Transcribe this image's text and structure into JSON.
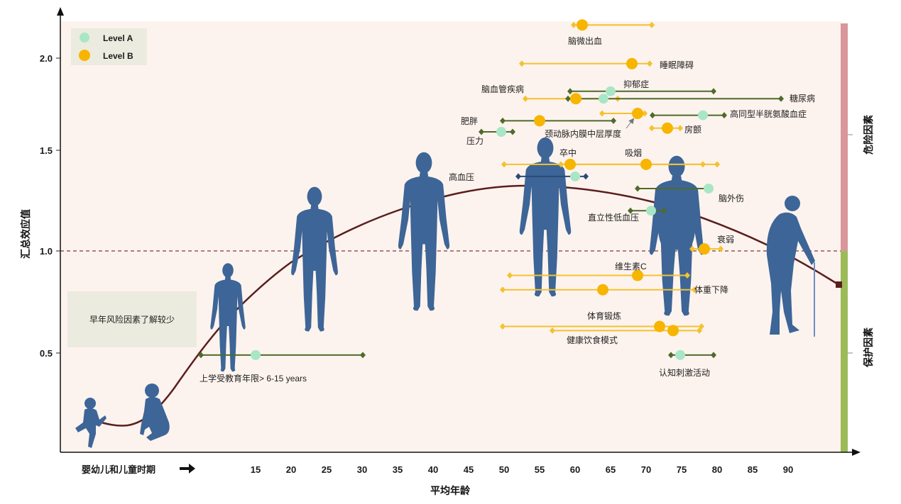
{
  "chart_data": {
    "type": "scatter",
    "xlabel": "平均年龄",
    "ylabel": "汇总效应值",
    "x_ticks": [
      15,
      20,
      25,
      30,
      35,
      40,
      45,
      50,
      55,
      60,
      65,
      70,
      75,
      80,
      85,
      90
    ],
    "y_ticks": [
      "0.5",
      "1.0",
      "1.5",
      "2.0"
    ],
    "ylim": [
      0,
      2.25
    ],
    "reference_line": 1.0,
    "grid": false,
    "legend_position": "top-left",
    "legend": [
      {
        "label": "Level A",
        "color": "#a8e6c6"
      },
      {
        "label": "Level B",
        "color": "#f7b500"
      }
    ],
    "items": [
      {
        "name": "脑微出血",
        "level": "Level B",
        "age": 61,
        "effect": 2.18,
        "age_range": [
          59.8,
          70.8
        ],
        "line_color": "#f3c22f"
      },
      {
        "name": "睡眠障碍",
        "level": "Level B",
        "age": 68,
        "effect": 1.97,
        "age_range": [
          52.5,
          70.5
        ],
        "line_color": "#f3c22f"
      },
      {
        "name": "抑郁症",
        "level": "Level A",
        "age": 65,
        "effect": 1.82,
        "age_range": [
          59.3,
          79.5
        ],
        "line_color": "#4e6b2b"
      },
      {
        "name": "脑血管疾病",
        "level": "Level B",
        "age": 60.1,
        "effect": 1.78,
        "age_range": [
          53,
          66
        ],
        "line_color": "#f3c22f"
      },
      {
        "name": "糖尿病",
        "level": "Level A",
        "age": 64,
        "effect": 1.78,
        "age_range": [
          59,
          89
        ],
        "line_color": "#4e6b2b"
      },
      {
        "name": "高同型半胱氨酸血症",
        "level": "Level A",
        "age": 78,
        "effect": 1.69,
        "age_range": [
          70.9,
          81
        ],
        "line_color": "#4e6b2b"
      },
      {
        "name": "颈动脉内膜中层厚度",
        "level": "Level B",
        "age": 68.8,
        "effect": 1.7,
        "age_range": [
          63.8,
          69.8
        ],
        "line_color": "#f3c22f"
      },
      {
        "name": "肥胖",
        "level": "Level B",
        "age": 55,
        "effect": 1.66,
        "age_range": [
          49.8,
          65.4
        ],
        "line_color": "#4e6b2b"
      },
      {
        "name": "房颤",
        "level": "Level B",
        "age": 73,
        "effect": 1.62,
        "age_range": [
          70.8,
          74.8
        ],
        "line_color": "#f3c22f"
      },
      {
        "name": "压力",
        "level": "Level A",
        "age": 49.6,
        "effect": 1.6,
        "age_range": [
          46.8,
          51.2
        ],
        "line_color": "#4e6b2b"
      },
      {
        "name": "卒中",
        "level": "Level B",
        "age": 59.3,
        "effect": 1.43,
        "age_range": [
          50,
          78
        ],
        "line_color": "#f3c22f"
      },
      {
        "name": "吸烟",
        "level": "Level B",
        "age": 70,
        "effect": 1.43,
        "age_range": [
          58,
          80
        ],
        "line_color": "#f3c22f"
      },
      {
        "name": "高血压",
        "level": "Level A",
        "age": 60,
        "effect": 1.37,
        "age_range": [
          52,
          61.5
        ],
        "line_color": "#2b4a7a"
      },
      {
        "name": "脑外伤",
        "level": "Level A",
        "age": 78.8,
        "effect": 1.31,
        "age_range": [
          68.8,
          79
        ],
        "line_color": "#4e6b2b"
      },
      {
        "name": "直立性低血压",
        "level": "Level A",
        "age": 70.7,
        "effect": 1.2,
        "age_range": [
          67.8,
          72.5
        ],
        "line_color": "#4e6b2b"
      },
      {
        "name": "衰弱",
        "level": "Level B",
        "age": 78.2,
        "effect": 1.01,
        "age_range": [
          76.5,
          80.5
        ],
        "line_color": "#f3c22f"
      },
      {
        "name": "维生素C",
        "level": "Level B",
        "age": 68.8,
        "effect": 0.88,
        "age_range": [
          50.8,
          75.8
        ],
        "line_color": "#f3c22f"
      },
      {
        "name": "体重下降",
        "level": "Level B",
        "age": 63.9,
        "effect": 0.81,
        "age_range": [
          49.8,
          76.8
        ],
        "line_color": "#f3c22f"
      },
      {
        "name": "体育锻炼",
        "level": "Level B",
        "age": 71.9,
        "effect": 0.63,
        "age_range": [
          49.8,
          77.8
        ],
        "line_color": "#f3c22f"
      },
      {
        "name": "健康饮食模式",
        "level": "Level B",
        "age": 73.8,
        "effect": 0.61,
        "age_range": [
          56.8,
          77.5
        ],
        "line_color": "#f3c22f"
      },
      {
        "name": "认知刺激活动",
        "level": "Level A",
        "age": 74.8,
        "effect": 0.49,
        "age_range": [
          73.5,
          79.5
        ],
        "line_color": "#4e6b2b"
      },
      {
        "name": "上学受教育年限> 6-15 years",
        "level": "Level A",
        "age": 15,
        "effect": 0.49,
        "age_range": [
          7.3,
          30.1
        ],
        "line_color": "#4e6b2b"
      }
    ]
  },
  "side_labels": {
    "risk": "危险因素",
    "protective": "保护因素"
  },
  "annotation": "早年风险因素了解较少",
  "childhood_label": "婴幼儿和儿童时期",
  "colors": {
    "plot_background": "#fdf3ee",
    "risk_bar": "#d9969b",
    "protective_bar": "#9bbb59",
    "figures": "#3d6597",
    "trend_curve": "#5a1e1e"
  }
}
